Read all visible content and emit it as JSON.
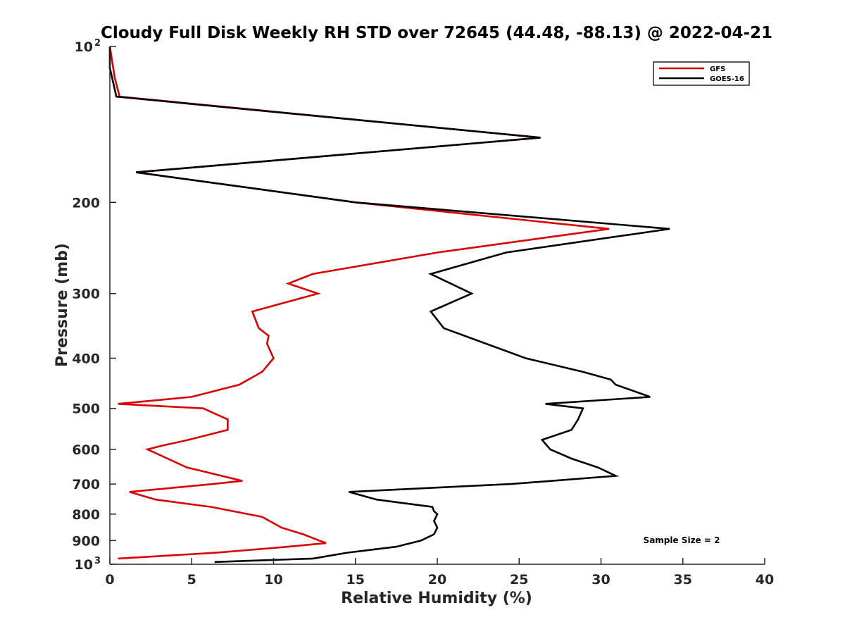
{
  "chart_data": {
    "type": "line",
    "title": "Cloudy Full Disk Weekly RH STD over 72645 (44.48, -88.13) @ 2022-04-21",
    "xlabel": "Relative Humidity (%)",
    "ylabel": "Pressure (mb)",
    "xlim": [
      0,
      40
    ],
    "ylim": [
      100,
      1000
    ],
    "y_scale": "log",
    "y_reversed": true,
    "grid": false,
    "legend_position": "top-right",
    "x_ticks": [
      0,
      5,
      10,
      15,
      20,
      25,
      30,
      35,
      40
    ],
    "y_ticks": [
      {
        "value": 100,
        "label": "10",
        "sup": "2"
      },
      {
        "value": 200,
        "label": "200",
        "sup": ""
      },
      {
        "value": 300,
        "label": "300",
        "sup": ""
      },
      {
        "value": 400,
        "label": "400",
        "sup": ""
      },
      {
        "value": 500,
        "label": "500",
        "sup": ""
      },
      {
        "value": 600,
        "label": "600",
        "sup": ""
      },
      {
        "value": 700,
        "label": "700",
        "sup": ""
      },
      {
        "value": 800,
        "label": "800",
        "sup": ""
      },
      {
        "value": 900,
        "label": "900",
        "sup": ""
      },
      {
        "value": 1000,
        "label": "10",
        "sup": "3"
      }
    ],
    "annotation": "Sample Size = 2",
    "series": [
      {
        "name": "GFS",
        "color": "#dd0000",
        "points": [
          [
            0.0,
            100
          ],
          [
            0.3,
            115
          ],
          [
            0.6,
            125
          ],
          [
            26.3,
            150
          ],
          [
            1.6,
            175
          ],
          [
            15.0,
            200
          ],
          [
            30.5,
            225
          ],
          [
            20.0,
            250
          ],
          [
            12.4,
            275
          ],
          [
            10.9,
            287
          ],
          [
            12.7,
            300
          ],
          [
            8.7,
            325
          ],
          [
            9.1,
            350
          ],
          [
            9.7,
            362
          ],
          [
            9.6,
            375
          ],
          [
            10.0,
            400
          ],
          [
            9.3,
            425
          ],
          [
            7.9,
            450
          ],
          [
            5.0,
            475
          ],
          [
            0.5,
            490
          ],
          [
            5.7,
            500
          ],
          [
            7.2,
            525
          ],
          [
            7.2,
            550
          ],
          [
            4.8,
            575
          ],
          [
            3.2,
            590
          ],
          [
            2.3,
            600
          ],
          [
            4.7,
            650
          ],
          [
            8.1,
            690
          ],
          [
            6.3,
            700
          ],
          [
            1.2,
            725
          ],
          [
            2.8,
            750
          ],
          [
            6.2,
            775
          ],
          [
            9.3,
            810
          ],
          [
            10.5,
            850
          ],
          [
            11.8,
            875
          ],
          [
            12.8,
            900
          ],
          [
            13.2,
            910
          ],
          [
            10.9,
            925
          ],
          [
            6.5,
            950
          ],
          [
            0.5,
            975
          ]
        ]
      },
      {
        "name": "GOES-16",
        "color": "#000000",
        "points": [
          [
            0.0,
            100
          ],
          [
            0.0,
            110
          ],
          [
            0.4,
            125
          ],
          [
            26.3,
            150
          ],
          [
            1.6,
            175
          ],
          [
            15.0,
            200
          ],
          [
            34.2,
            225
          ],
          [
            24.2,
            250
          ],
          [
            19.6,
            275
          ],
          [
            22.1,
            300
          ],
          [
            19.6,
            325
          ],
          [
            20.4,
            350
          ],
          [
            25.4,
            400
          ],
          [
            28.9,
            425
          ],
          [
            30.6,
            440
          ],
          [
            30.9,
            450
          ],
          [
            33.0,
            475
          ],
          [
            26.6,
            490
          ],
          [
            28.9,
            500
          ],
          [
            28.6,
            525
          ],
          [
            28.2,
            550
          ],
          [
            26.4,
            575
          ],
          [
            26.7,
            590
          ],
          [
            26.9,
            600
          ],
          [
            28.2,
            625
          ],
          [
            29.8,
            650
          ],
          [
            30.9,
            675
          ],
          [
            24.5,
            700
          ],
          [
            20.4,
            710
          ],
          [
            14.6,
            725
          ],
          [
            16.3,
            750
          ],
          [
            19.7,
            775
          ],
          [
            19.8,
            790
          ],
          [
            20.0,
            800
          ],
          [
            19.8,
            825
          ],
          [
            20.0,
            850
          ],
          [
            19.8,
            875
          ],
          [
            19.0,
            900
          ],
          [
            17.5,
            925
          ],
          [
            14.5,
            950
          ],
          [
            12.4,
            975
          ],
          [
            6.4,
            990
          ]
        ]
      }
    ]
  }
}
